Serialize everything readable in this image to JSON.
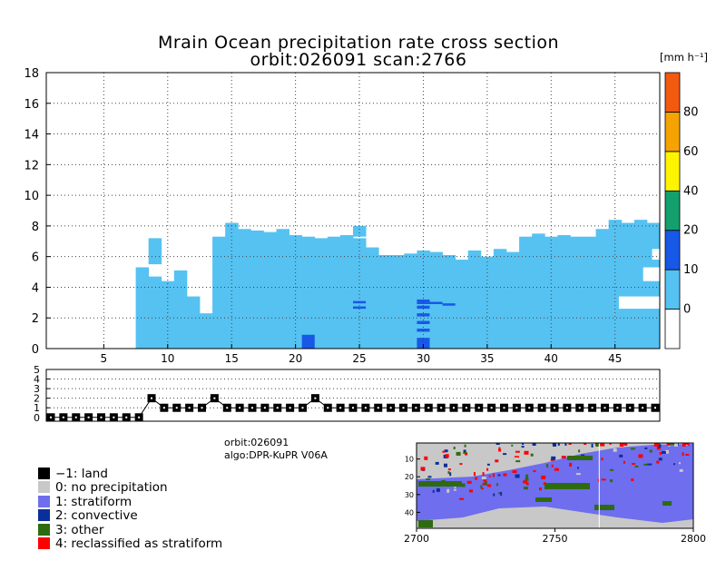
{
  "title": {
    "line1": "Mrain Ocean precipitation rate cross section",
    "line2": "orbit:026091    scan:2766"
  },
  "info": {
    "orbit": "orbit:026091",
    "algo": "algo:DPR-KuPR V06A"
  },
  "legend": [
    {
      "label": "−1: land",
      "color": "#000000"
    },
    {
      "label": "0: no precipitation",
      "color": "#c8c8c8"
    },
    {
      "label": "1: stratiform",
      "color": "#6e6eee"
    },
    {
      "label": "2: convective",
      "color": "#0a2f9a"
    },
    {
      "label": "3: other",
      "color": "#2e6b10"
    },
    {
      "label": "4: reclassified as stratiform",
      "color": "#ff0000"
    }
  ],
  "chart_data": [
    {
      "type": "heatmap",
      "title": "Mrain Ocean precipitation rate cross section",
      "subtitle": "orbit:026091    scan:2766",
      "x_ticks": [
        5,
        10,
        15,
        20,
        25,
        30,
        35,
        40,
        45
      ],
      "y_ticks": [
        0,
        2,
        4,
        6,
        8,
        10,
        12,
        14,
        16,
        18
      ],
      "xlim": [
        0.5,
        48.5
      ],
      "ylim": [
        0,
        18
      ],
      "grid": true,
      "colorbar": {
        "unit": "[mm h⁻¹]",
        "levels": [
          0,
          10,
          20,
          40,
          60,
          80,
          100
        ],
        "tick_labels": [
          "0",
          "10",
          "20",
          "40",
          "60",
          "80"
        ],
        "colors": [
          "#ffffff",
          "#55c2f2",
          "#1858e6",
          "#13a06e",
          "#fff400",
          "#f5a300",
          "#f25a10"
        ]
      },
      "columns": [
        {
          "bin": 8,
          "top": 5.3
        },
        {
          "bin": 9,
          "top": 4.7
        },
        {
          "bin": 10,
          "top": 4.4
        },
        {
          "bin": 11,
          "top": 5.1
        },
        {
          "bin": 12,
          "top": 3.4
        },
        {
          "bin": 13,
          "top": 2.3
        },
        {
          "bin": 14,
          "top": 7.3
        },
        {
          "bin": 15,
          "top": 8.2
        },
        {
          "bin": 16,
          "top": 7.8
        },
        {
          "bin": 17,
          "top": 7.7
        },
        {
          "bin": 18,
          "top": 7.6
        },
        {
          "bin": 19,
          "top": 7.8
        },
        {
          "bin": 20,
          "top": 7.4
        },
        {
          "bin": 21,
          "top": 7.3
        },
        {
          "bin": 22,
          "top": 7.2
        },
        {
          "bin": 23,
          "top": 7.3
        },
        {
          "bin": 24,
          "top": 7.4
        },
        {
          "bin": 25,
          "top": 7.2
        },
        {
          "bin": 26,
          "top": 6.6
        },
        {
          "bin": 27,
          "top": 6.1
        },
        {
          "bin": 28,
          "top": 6.1
        },
        {
          "bin": 29,
          "top": 6.2
        },
        {
          "bin": 30,
          "top": 6.4
        },
        {
          "bin": 31,
          "top": 6.3
        },
        {
          "bin": 32,
          "top": 6.1
        },
        {
          "bin": 33,
          "top": 5.8
        },
        {
          "bin": 34,
          "top": 6.4
        },
        {
          "bin": 35,
          "top": 6.0
        },
        {
          "bin": 36,
          "top": 6.5
        },
        {
          "bin": 37,
          "top": 6.3
        },
        {
          "bin": 38,
          "top": 7.3
        },
        {
          "bin": 39,
          "top": 7.5
        },
        {
          "bin": 40,
          "top": 7.3
        },
        {
          "bin": 41,
          "top": 7.4
        },
        {
          "bin": 42,
          "top": 7.3
        },
        {
          "bin": 43,
          "top": 7.3
        },
        {
          "bin": 44,
          "top": 7.8
        },
        {
          "bin": 45,
          "top": 8.4
        },
        {
          "bin": 46,
          "top": 8.2
        },
        {
          "bin": 47,
          "top": 8.4
        },
        {
          "bin": 48,
          "top": 8.2
        }
      ],
      "bumps": [
        {
          "bin": 9,
          "bottom": 5.5,
          "top": 7.2
        },
        {
          "bin": 25,
          "bottom": 7.3,
          "top": 8.0
        }
      ],
      "heavy_cells": [
        {
          "bin": 21,
          "bottom": 0,
          "top": 0.9
        },
        {
          "bin": 30,
          "bottom": 0,
          "top": 0.7
        },
        {
          "bin": 30,
          "bottom": 1.1,
          "top": 1.3
        },
        {
          "bin": 30,
          "bottom": 1.6,
          "top": 1.8
        },
        {
          "bin": 30,
          "bottom": 2.1,
          "top": 2.3
        },
        {
          "bin": 30,
          "bottom": 2.6,
          "top": 2.8
        },
        {
          "bin": 30,
          "bottom": 2.9,
          "top": 3.2
        },
        {
          "bin": 25,
          "bottom": 2.6,
          "top": 2.75
        },
        {
          "bin": 25,
          "bottom": 2.95,
          "top": 3.1
        },
        {
          "bin": 31,
          "bottom": 2.9,
          "top": 3.05
        },
        {
          "bin": 32,
          "bottom": 2.8,
          "top": 2.95
        }
      ]
    },
    {
      "type": "line",
      "x_ticks": [],
      "y_ticks": [
        0,
        1,
        2,
        3,
        4,
        5
      ],
      "ylim": [
        -0.4,
        5
      ],
      "grid": true,
      "x": [
        1,
        2,
        3,
        4,
        5,
        6,
        7,
        8,
        9,
        10,
        11,
        12,
        13,
        14,
        15,
        16,
        17,
        18,
        19,
        20,
        21,
        22,
        23,
        24,
        25,
        26,
        27,
        28,
        29,
        30,
        31,
        32,
        33,
        34,
        35,
        36,
        37,
        38,
        39,
        40,
        41,
        42,
        43,
        44,
        45,
        46,
        47,
        48,
        49
      ],
      "values": [
        0,
        0,
        0,
        0,
        0,
        0,
        0,
        0,
        2,
        1,
        1,
        1,
        1,
        2,
        1,
        1,
        1,
        1,
        1,
        1,
        1,
        2,
        1,
        1,
        1,
        1,
        1,
        1,
        1,
        1,
        1,
        1,
        1,
        1,
        1,
        1,
        1,
        1,
        1,
        1,
        1,
        1,
        1,
        1,
        1,
        1,
        1,
        1,
        1
      ]
    },
    {
      "type": "heatmap",
      "x_ticks": [
        2700,
        2750,
        2800
      ],
      "y_ticks": [
        10,
        20,
        30,
        40
      ],
      "xlim": [
        2700,
        2800
      ],
      "ylim": [
        1,
        49
      ]
    }
  ]
}
